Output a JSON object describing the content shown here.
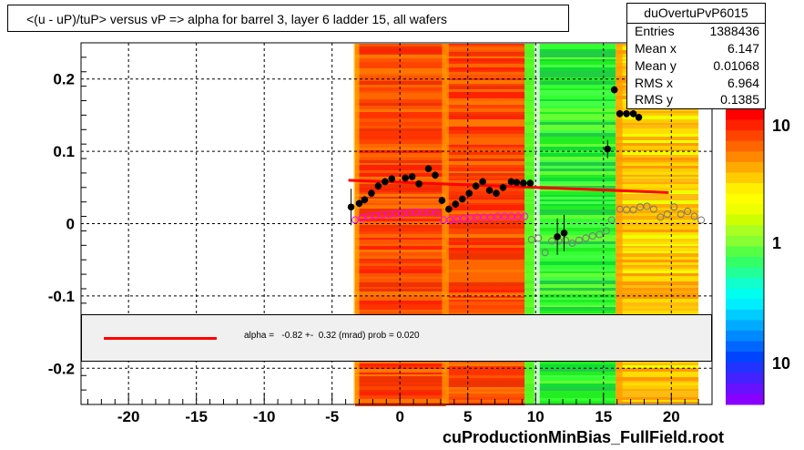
{
  "title": "<(u - uP)/tuP>  versus   vP => alpha for barrel 3, layer 6 ladder 15, all wafers",
  "footer": "cuProductionMinBias_FullField.root",
  "stats": {
    "name": "duOvertuPvP6015",
    "rows": [
      {
        "label": "Entries",
        "value": "1388436"
      },
      {
        "label": "Mean x",
        "value": "6.147"
      },
      {
        "label": "Mean y",
        "value": "0.01068"
      },
      {
        "label": "RMS x",
        "value": "6.964"
      },
      {
        "label": "RMS y",
        "value": "0.1385"
      }
    ]
  },
  "fit_legend": "alpha =   -0.82 +-  0.32 (mrad) prob = 0.020",
  "colors": {
    "fit_line": "#ff0000",
    "profile_points": "#000000",
    "open_markers": "#ff00ff"
  },
  "chart_data": {
    "type": "scatter",
    "title": "<(u - uP)/tuP>  versus   vP => alpha for barrel 3, layer 6 ladder 15, all wafers",
    "xlabel": "",
    "ylabel": "",
    "xlim": [
      -23.5,
      23
    ],
    "ylim": [
      -0.25,
      0.25
    ],
    "x_ticks": [
      -20,
      -15,
      -10,
      -5,
      0,
      5,
      10,
      15,
      20
    ],
    "y_ticks": [
      -0.2,
      -0.1,
      0,
      0.1,
      0.2
    ],
    "grid": true,
    "color_scale": {
      "type": "log",
      "labels": [
        "10",
        "1",
        "10"
      ]
    },
    "density_bands": [
      {
        "x0": -3.3,
        "x1": 3.4,
        "level": "high"
      },
      {
        "x0": 3.4,
        "x1": 9.2,
        "level": "high"
      },
      {
        "x0": 9.2,
        "x1": 15.9,
        "level": "medium"
      },
      {
        "x0": 15.9,
        "x1": 22,
        "level": "mixed"
      }
    ],
    "series": [
      {
        "marker": "filled-circle",
        "points": [
          [
            -3.6,
            0.023
          ],
          [
            -3.0,
            0.028
          ],
          [
            -2.6,
            0.033
          ],
          [
            -2.1,
            0.042
          ],
          [
            -1.6,
            0.052
          ],
          [
            -1.1,
            0.058
          ],
          [
            -0.6,
            0.062
          ],
          [
            0.4,
            0.063
          ],
          [
            0.9,
            0.065
          ],
          [
            1.4,
            0.055
          ],
          [
            2.1,
            0.076
          ],
          [
            2.6,
            0.067
          ],
          [
            3.1,
            0.032
          ],
          [
            3.6,
            0.02
          ],
          [
            4.1,
            0.027
          ],
          [
            4.6,
            0.034
          ],
          [
            5.1,
            0.042
          ],
          [
            5.6,
            0.052
          ],
          [
            6.1,
            0.058
          ],
          [
            6.6,
            0.046
          ],
          [
            7.1,
            0.042
          ],
          [
            7.6,
            0.05
          ],
          [
            8.2,
            0.058
          ],
          [
            8.6,
            0.057
          ],
          [
            9.1,
            0.056
          ],
          [
            9.6,
            0.056
          ],
          [
            11.6,
            -0.018
          ],
          [
            12.1,
            -0.013
          ],
          [
            15.3,
            0.103
          ],
          [
            15.8,
            0.185
          ],
          [
            16.2,
            0.152
          ],
          [
            16.7,
            0.152
          ],
          [
            17.2,
            0.152
          ],
          [
            17.6,
            0.147
          ],
          [
            19.6,
            0.17
          ]
        ]
      },
      {
        "marker": "open-circle",
        "points": [
          [
            -3.3,
            0.005
          ],
          [
            -2.8,
            0.008
          ],
          [
            -2.3,
            0.01
          ],
          [
            -1.8,
            0.011
          ],
          [
            -1.3,
            0.012
          ],
          [
            -0.8,
            0.013
          ],
          [
            -0.3,
            0.014
          ],
          [
            0.2,
            0.014
          ],
          [
            0.7,
            0.015
          ],
          [
            1.2,
            0.016
          ],
          [
            1.7,
            0.015
          ],
          [
            2.2,
            0.016
          ],
          [
            2.7,
            0.015
          ],
          [
            3.2,
            0.005
          ],
          [
            3.7,
            0.005
          ],
          [
            4.2,
            0.006
          ],
          [
            4.7,
            0.007
          ],
          [
            5.2,
            0.008
          ],
          [
            5.7,
            0.009
          ],
          [
            6.2,
            0.009
          ],
          [
            6.7,
            0.009
          ],
          [
            7.2,
            0.01
          ],
          [
            7.7,
            0.01
          ],
          [
            8.2,
            0.01
          ],
          [
            8.7,
            0.01
          ],
          [
            9.2,
            0.01
          ],
          [
            9.7,
            -0.022
          ],
          [
            10.2,
            -0.02
          ],
          [
            10.7,
            -0.04
          ],
          [
            11.2,
            -0.024
          ],
          [
            11.7,
            -0.024
          ],
          [
            12.2,
            -0.023
          ],
          [
            12.7,
            -0.027
          ],
          [
            13.2,
            -0.023
          ],
          [
            13.7,
            -0.02
          ],
          [
            14.2,
            -0.017
          ],
          [
            14.7,
            -0.015
          ],
          [
            15.2,
            -0.01
          ],
          [
            15.6,
            0.005
          ],
          [
            16.2,
            0.02
          ],
          [
            16.7,
            0.019
          ],
          [
            17.2,
            0.019
          ],
          [
            17.7,
            0.023
          ],
          [
            18.2,
            0.024
          ],
          [
            18.7,
            0.02
          ],
          [
            19.2,
            0.009
          ],
          [
            19.7,
            0.013
          ],
          [
            20.2,
            0.023
          ],
          [
            20.7,
            0.013
          ],
          [
            21.2,
            0.017
          ],
          [
            21.7,
            0.01
          ],
          [
            22.2,
            0.005
          ]
        ]
      }
    ],
    "fit_line": {
      "x": [
        -3.8,
        19.8
      ],
      "y": [
        0.06,
        0.043
      ]
    }
  }
}
